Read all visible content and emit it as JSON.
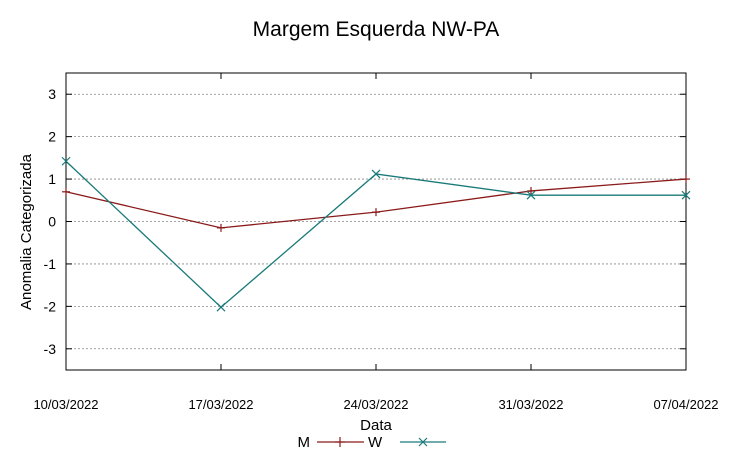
{
  "chart_data": {
    "type": "line",
    "title": "Margem Esquerda NW-PA",
    "xlabel": "Data",
    "ylabel": "Anomalia Categorizada",
    "categories": [
      "10/03/2022",
      "17/03/2022",
      "24/03/2022",
      "31/03/2022",
      "07/04/2022"
    ],
    "ylim": [
      -3.5,
      3.5
    ],
    "yticks": [
      "3",
      "2",
      "1",
      "0",
      "-1",
      "-2",
      "-3"
    ],
    "ytick_values": [
      3,
      2,
      1,
      0,
      -1,
      -2,
      -3
    ],
    "grid": true,
    "legend_position": "bottom",
    "series": [
      {
        "name": "M",
        "values": [
          0.7,
          -0.15,
          0.22,
          0.72,
          1.0
        ],
        "color": "#8b1a1a",
        "marker": "plus"
      },
      {
        "name": "W",
        "values": [
          1.42,
          -2.02,
          1.12,
          0.62,
          0.62
        ],
        "color": "#1a7a7a",
        "marker": "cross"
      }
    ]
  }
}
